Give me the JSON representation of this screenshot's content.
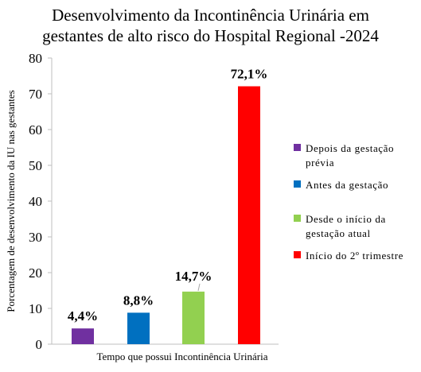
{
  "chart_data": {
    "type": "bar",
    "title_lines": [
      "Desenvolvimento da Incontinência Urinária em",
      "gestantes de alto risco do  Hospital Regional -2024"
    ],
    "ylabel": "Porcentagem de desenvolvimento  da IU nas gestantes",
    "xlabel": "Tempo que possui  Incontinência  Urinária",
    "ylim": [
      0,
      80
    ],
    "yticks": [
      0,
      10,
      20,
      30,
      40,
      50,
      60,
      70,
      80
    ],
    "grid": false,
    "legend_position": "right",
    "series": [
      {
        "name": "Depois da gestação prévia",
        "value": 4.4,
        "label": "4,4%",
        "color": "#7030A0"
      },
      {
        "name": "Antes da gestação",
        "value": 8.8,
        "label": "8,8%",
        "color": "#0070C0"
      },
      {
        "name": "Desde o início da gestação atual",
        "value": 14.7,
        "label": "14,7%",
        "color": "#92D050"
      },
      {
        "name": "Início do 2º trimestre",
        "value": 72.1,
        "label": "72,1%",
        "color": "#FF0000"
      }
    ]
  }
}
